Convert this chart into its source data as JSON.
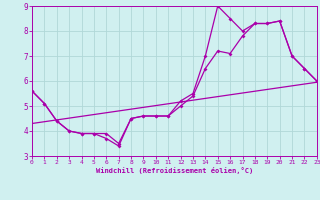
{
  "line1_x": [
    0,
    1,
    2,
    3,
    4,
    5,
    6,
    7,
    8,
    9,
    10,
    11,
    12,
    13,
    14,
    15,
    16,
    17,
    18,
    19,
    20,
    21,
    22,
    23
  ],
  "line1_y": [
    5.6,
    5.1,
    4.4,
    4.0,
    3.9,
    3.9,
    3.7,
    3.4,
    4.5,
    4.6,
    4.6,
    4.6,
    5.0,
    5.4,
    6.5,
    7.2,
    7.1,
    7.8,
    8.3,
    8.3,
    8.4,
    7.0,
    6.5,
    6.0
  ],
  "line2_x": [
    0,
    1,
    2,
    3,
    4,
    5,
    6,
    7,
    8,
    9,
    10,
    11,
    12,
    13,
    14,
    15,
    16,
    17,
    18,
    19,
    20,
    21,
    22,
    23
  ],
  "line2_y": [
    5.6,
    5.1,
    4.4,
    4.0,
    3.9,
    3.9,
    3.9,
    3.5,
    4.5,
    4.6,
    4.6,
    4.6,
    5.2,
    5.5,
    7.0,
    9.0,
    8.5,
    8.0,
    8.3,
    8.3,
    8.4,
    7.0,
    6.5,
    6.0
  ],
  "line3_x": [
    0,
    23
  ],
  "line3_y": [
    4.3,
    5.95
  ],
  "line_color": "#aa00aa",
  "background_color": "#d0f0f0",
  "grid_color": "#b0d8d8",
  "xlabel": "Windchill (Refroidissement éolien,°C)",
  "ylim": [
    3,
    9
  ],
  "xlim": [
    0,
    23
  ],
  "yticks": [
    3,
    4,
    5,
    6,
    7,
    8,
    9
  ],
  "xticks": [
    0,
    1,
    2,
    3,
    4,
    5,
    6,
    7,
    8,
    9,
    10,
    11,
    12,
    13,
    14,
    15,
    16,
    17,
    18,
    19,
    20,
    21,
    22,
    23
  ]
}
